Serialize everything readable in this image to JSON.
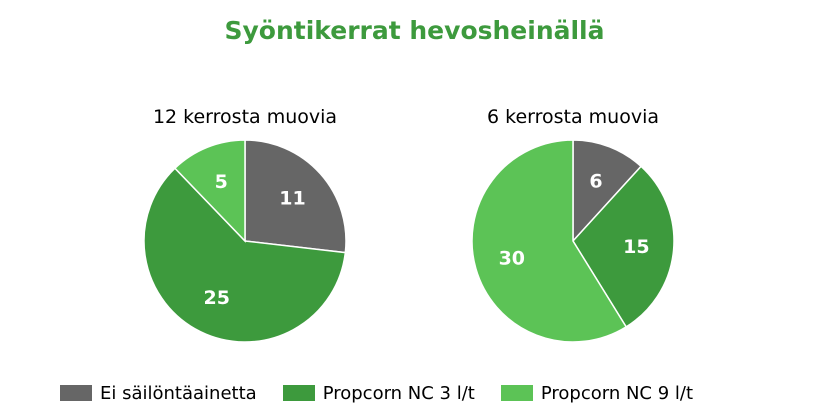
{
  "title": "Syöntikerrat hevosheinällä",
  "legend": [
    {
      "label": "Ei säilöntäainetta",
      "color": "#666666"
    },
    {
      "label": "Propcorn NC 3 l/t",
      "color": "#3d9a3d"
    },
    {
      "label": "Propcorn NC 9 l/t",
      "color": "#5cc356"
    }
  ],
  "chart_data": [
    {
      "type": "pie",
      "title": "12 kerrosta muovia",
      "labels": [
        "Ei säilöntäainetta",
        "Propcorn NC 3 l/t",
        "Propcorn NC 9 l/t"
      ],
      "values": [
        11,
        25,
        5
      ],
      "colors": [
        "#666666",
        "#3d9a3d",
        "#5cc356"
      ],
      "value_labels": [
        "11",
        "25",
        "5"
      ]
    },
    {
      "type": "pie",
      "title": "6 kerrosta muovia",
      "labels": [
        "Ei säilöntäainetta",
        "Propcorn NC 3 l/t",
        "Propcorn NC 9 l/t"
      ],
      "values": [
        6,
        15,
        30
      ],
      "colors": [
        "#666666",
        "#3d9a3d",
        "#5cc356"
      ],
      "value_labels": [
        "6",
        "15",
        "30"
      ]
    }
  ]
}
